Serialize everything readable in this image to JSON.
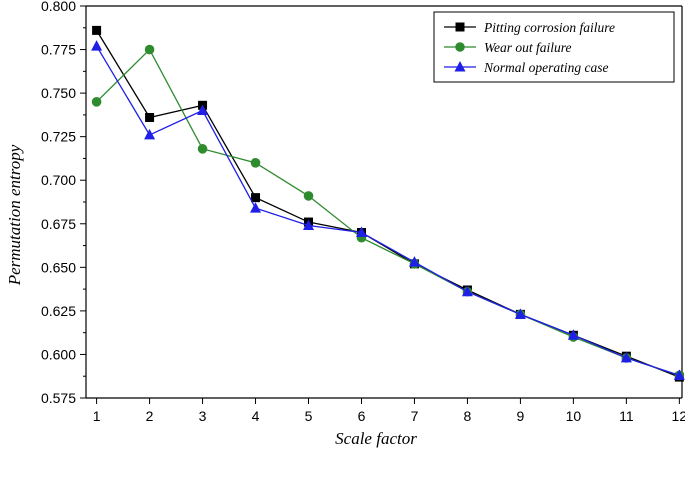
{
  "chart_data": {
    "type": "line",
    "title": "",
    "xlabel": "Scale factor",
    "ylabel": "Permutation entropy",
    "x": [
      1,
      2,
      3,
      4,
      5,
      6,
      7,
      8,
      9,
      10,
      11,
      12
    ],
    "xlim": [
      0.8,
      12.05
    ],
    "ylim": [
      0.575,
      0.8
    ],
    "yticks": [
      "0.575",
      "0.600",
      "0.625",
      "0.650",
      "0.675",
      "0.700",
      "0.725",
      "0.750",
      "0.775",
      "0.800"
    ],
    "xticks": [
      "1",
      "2",
      "3",
      "4",
      "5",
      "6",
      "7",
      "8",
      "9",
      "10",
      "11",
      "12"
    ],
    "grid": false,
    "legend_position": "top-right",
    "series": [
      {
        "name": "Pitting corrosion failure",
        "color": "#000000",
        "marker": "square",
        "values": [
          0.786,
          0.736,
          0.743,
          0.69,
          0.676,
          0.67,
          0.652,
          0.637,
          0.623,
          0.611,
          0.599,
          0.587
        ]
      },
      {
        "name": "Wear out failure",
        "color": "#2e8b2e",
        "marker": "circle",
        "values": [
          0.745,
          0.775,
          0.718,
          0.71,
          0.691,
          0.667,
          0.652,
          0.636,
          0.623,
          0.61,
          0.598,
          0.588
        ]
      },
      {
        "name": "Normal operating case",
        "color": "#1f1fe6",
        "marker": "triangle",
        "values": [
          0.777,
          0.726,
          0.74,
          0.684,
          0.674,
          0.67,
          0.653,
          0.636,
          0.623,
          0.611,
          0.598,
          0.588
        ]
      }
    ]
  }
}
